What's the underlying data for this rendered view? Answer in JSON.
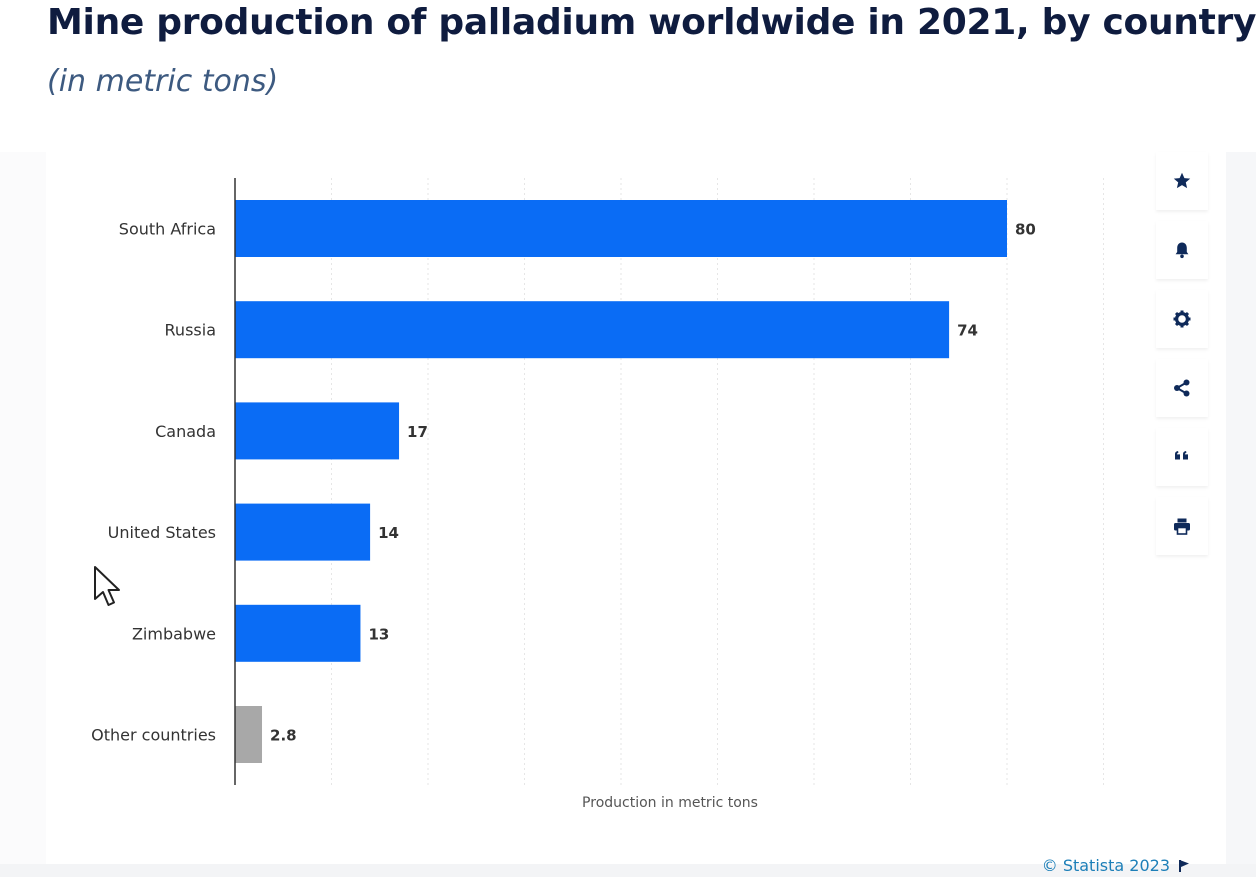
{
  "header": {
    "title": "Mine production of palladium worldwide in 2021, by country",
    "subtitle": "(in metric tons)"
  },
  "chart_data": {
    "type": "bar",
    "orientation": "horizontal",
    "categories": [
      "South Africa",
      "Russia",
      "Canada",
      "United States",
      "Zimbabwe",
      "Other countries"
    ],
    "values": [
      80,
      74,
      17,
      14,
      13,
      2.8
    ],
    "value_labels": [
      "80",
      "74",
      "17",
      "14",
      "13",
      "2.8"
    ],
    "bar_colors": [
      "#0a6cf5",
      "#0a6cf5",
      "#0a6cf5",
      "#0a6cf5",
      "#0a6cf5",
      "#a8a8a8"
    ],
    "xlabel": "Production in metric tons",
    "xlim": [
      0,
      90
    ],
    "gridlines": true,
    "legend": "none"
  },
  "toolbar": {
    "items": [
      {
        "name": "favorite",
        "icon": "star-icon"
      },
      {
        "name": "notification",
        "icon": "bell-icon"
      },
      {
        "name": "settings",
        "icon": "gear-icon"
      },
      {
        "name": "share",
        "icon": "share-icon"
      },
      {
        "name": "cite",
        "icon": "quote-icon"
      },
      {
        "name": "print",
        "icon": "printer-icon"
      }
    ],
    "icon_color": "#0f2a5a"
  },
  "footer": {
    "credit": "© Statista 2023"
  },
  "colors": {
    "title": "#0f1c3f",
    "subtitle": "#3d5a80",
    "bar": "#0a6cf5",
    "other_bar": "#a8a8a8",
    "credit": "#1d7fb8"
  }
}
